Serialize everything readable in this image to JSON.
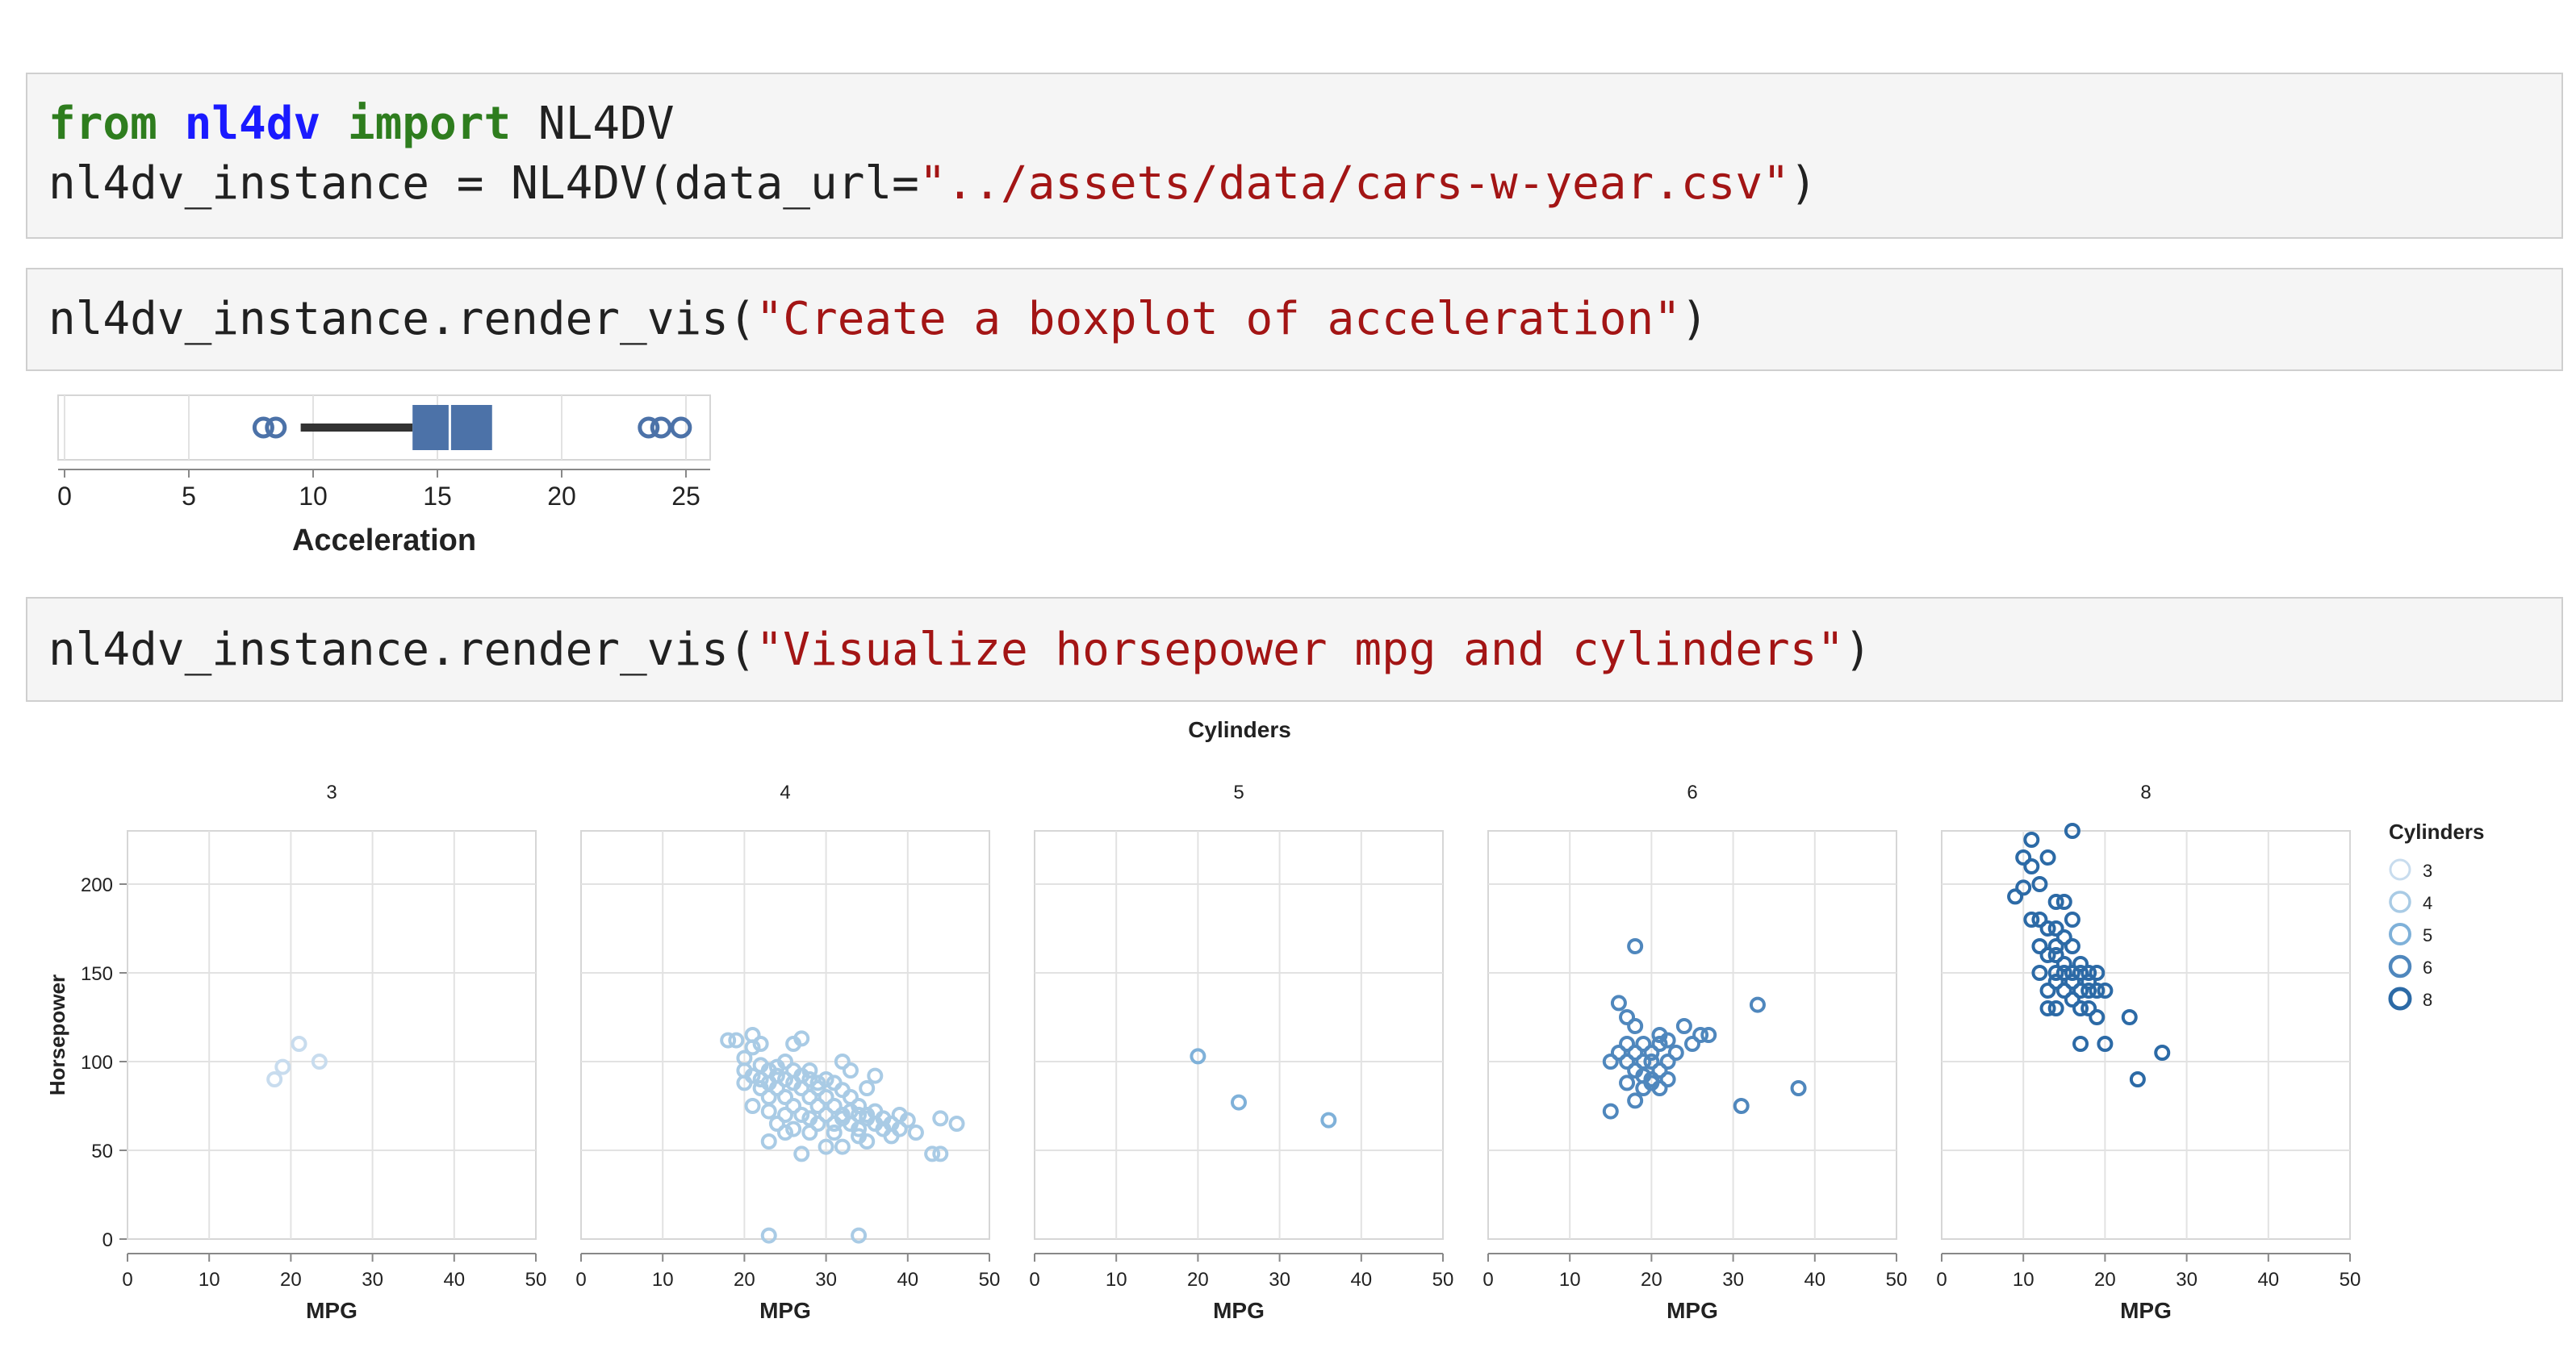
{
  "cells": {
    "c1": {
      "kw_from": "from",
      "module": "nl4dv",
      "kw_import": "import",
      "import_name": " NL4DV",
      "l2_pre": "nl4dv_instance = NL4DV(data_url=",
      "l2_str": "\"../assets/data/cars-w-year.csv\"",
      "l2_post": ")"
    },
    "c2": {
      "pre": "nl4dv_instance.render_vis(",
      "str": "\"Create a boxplot of acceleration\"",
      "post": ")"
    },
    "c3": {
      "pre": "nl4dv_instance.render_vis(",
      "str": "\"Visualize horsepower mpg and cylinders\"",
      "post": ")"
    }
  },
  "chart_data": [
    {
      "type": "boxplot",
      "xlabel": "Acceleration",
      "xlim": [
        0,
        25
      ],
      "ticks": [
        0,
        5,
        10,
        15,
        20,
        25
      ],
      "whisker_low": 9.5,
      "q1": 14,
      "median": 15.5,
      "q3": 17.2,
      "whisker_high": 17.2,
      "outliers": [
        8,
        8.5,
        23.5,
        24,
        24.8
      ]
    },
    {
      "type": "scatter",
      "title": "Cylinders",
      "xlabel": "MPG",
      "ylabel": "Horsepower",
      "xlim": [
        0,
        50
      ],
      "ylim": [
        0,
        230
      ],
      "xticks": [
        0,
        10,
        20,
        30,
        40,
        50
      ],
      "yticks": [
        0,
        50,
        100,
        150,
        200
      ],
      "legend": {
        "title": "Cylinders",
        "entries": [
          "3",
          "4",
          "5",
          "6",
          "8"
        ],
        "position": "right"
      },
      "facets": [
        {
          "label": "3",
          "color": "#c8dcee",
          "points": [
            [
              18,
              90
            ],
            [
              19,
              97
            ],
            [
              21,
              110
            ],
            [
              23.5,
              100
            ]
          ]
        },
        {
          "label": "4",
          "color": "#a9cbe5",
          "points": [
            [
              18,
              112
            ],
            [
              19,
              112
            ],
            [
              20,
              102
            ],
            [
              20,
              88
            ],
            [
              20,
              95
            ],
            [
              21,
              115
            ],
            [
              21,
              108
            ],
            [
              21,
              92
            ],
            [
              21,
              75
            ],
            [
              22,
              85
            ],
            [
              22,
              98
            ],
            [
              22,
              110
            ],
            [
              22,
              90
            ],
            [
              23,
              88
            ],
            [
              23,
              80
            ],
            [
              23,
              95
            ],
            [
              23,
              72
            ],
            [
              23,
              55
            ],
            [
              24,
              97
            ],
            [
              24,
              85
            ],
            [
              24,
              92
            ],
            [
              24,
              65
            ],
            [
              25,
              90
            ],
            [
              25,
              80
            ],
            [
              25,
              100
            ],
            [
              25,
              70
            ],
            [
              25,
              60
            ],
            [
              26,
              88
            ],
            [
              26,
              95
            ],
            [
              26,
              75
            ],
            [
              26,
              110
            ],
            [
              26,
              62
            ],
            [
              27,
              85
            ],
            [
              27,
              92
            ],
            [
              27,
              70
            ],
            [
              27,
              113
            ],
            [
              27,
              48
            ],
            [
              28,
              90
            ],
            [
              28,
              80
            ],
            [
              28,
              68
            ],
            [
              28,
              95
            ],
            [
              28,
              60
            ],
            [
              29,
              88
            ],
            [
              29,
              75
            ],
            [
              29,
              85
            ],
            [
              29,
              65
            ],
            [
              30,
              70
            ],
            [
              30,
              80
            ],
            [
              30,
              90
            ],
            [
              30,
              52
            ],
            [
              31,
              65
            ],
            [
              31,
              75
            ],
            [
              31,
              88
            ],
            [
              31,
              60
            ],
            [
              32,
              70
            ],
            [
              32,
              84
            ],
            [
              32,
              100
            ],
            [
              32,
              68
            ],
            [
              32,
              52
            ],
            [
              33,
              72
            ],
            [
              33,
              65
            ],
            [
              33,
              80
            ],
            [
              33,
              95
            ],
            [
              34,
              70
            ],
            [
              34,
              62
            ],
            [
              34,
              75
            ],
            [
              34,
              58
            ],
            [
              35,
              68
            ],
            [
              35,
              85
            ],
            [
              35,
              70
            ],
            [
              35,
              55
            ],
            [
              36,
              65
            ],
            [
              36,
              72
            ],
            [
              36,
              92
            ],
            [
              37,
              68
            ],
            [
              37,
              62
            ],
            [
              38,
              65
            ],
            [
              38,
              58
            ],
            [
              39,
              70
            ],
            [
              39,
              62
            ],
            [
              40,
              67
            ],
            [
              41,
              60
            ],
            [
              43,
              48
            ],
            [
              44,
              48
            ],
            [
              44,
              68
            ],
            [
              46,
              65
            ],
            [
              23,
              2
            ],
            [
              34,
              2
            ]
          ]
        },
        {
          "label": "5",
          "color": "#7fb1d9",
          "points": [
            [
              20,
              103
            ],
            [
              25,
              77
            ],
            [
              36,
              67
            ]
          ]
        },
        {
          "label": "6",
          "color": "#4f87bd",
          "points": [
            [
              15,
              72
            ],
            [
              15,
              100
            ],
            [
              16,
              105
            ],
            [
              16,
              133
            ],
            [
              17,
              88
            ],
            [
              17,
              100
            ],
            [
              17,
              110
            ],
            [
              17,
              125
            ],
            [
              18,
              78
            ],
            [
              18,
              95
            ],
            [
              18,
              105
            ],
            [
              18,
              165
            ],
            [
              18,
              120
            ],
            [
              19,
              85
            ],
            [
              19,
              100
            ],
            [
              19,
              110
            ],
            [
              19,
              92
            ],
            [
              20,
              90
            ],
            [
              20,
              100
            ],
            [
              20,
              105
            ],
            [
              20,
              88
            ],
            [
              21,
              95
            ],
            [
              21,
              110
            ],
            [
              21,
              85
            ],
            [
              21,
              115
            ],
            [
              22,
              90
            ],
            [
              22,
              100
            ],
            [
              22,
              112
            ],
            [
              23,
              105
            ],
            [
              24,
              120
            ],
            [
              25,
              110
            ],
            [
              26,
              115
            ],
            [
              27,
              115
            ],
            [
              31,
              75
            ],
            [
              33,
              132
            ],
            [
              38,
              85
            ]
          ]
        },
        {
          "label": "8",
          "color": "#2c6aa6",
          "points": [
            [
              9,
              193
            ],
            [
              10,
              215
            ],
            [
              10,
              198
            ],
            [
              11,
              210
            ],
            [
              11,
              180
            ],
            [
              11,
              225
            ],
            [
              12,
              200
            ],
            [
              12,
              180
            ],
            [
              12,
              165
            ],
            [
              12,
              150
            ],
            [
              13,
              215
            ],
            [
              13,
              175
            ],
            [
              13,
              160
            ],
            [
              13,
              140
            ],
            [
              13,
              130
            ],
            [
              14,
              190
            ],
            [
              14,
              175
            ],
            [
              14,
              160
            ],
            [
              14,
              150
            ],
            [
              14,
              145
            ],
            [
              14,
              130
            ],
            [
              14,
              165
            ],
            [
              15,
              190
            ],
            [
              15,
              170
            ],
            [
              15,
              150
            ],
            [
              15,
              140
            ],
            [
              15,
              155
            ],
            [
              16,
              230
            ],
            [
              16,
              180
            ],
            [
              16,
              165
            ],
            [
              16,
              150
            ],
            [
              16,
              145
            ],
            [
              16,
              135
            ],
            [
              17,
              150
            ],
            [
              17,
              140
            ],
            [
              17,
              130
            ],
            [
              17,
              110
            ],
            [
              17,
              155
            ],
            [
              18,
              150
            ],
            [
              18,
              145
            ],
            [
              18,
              140
            ],
            [
              18,
              130
            ],
            [
              19,
              150
            ],
            [
              19,
              140
            ],
            [
              19,
              125
            ],
            [
              20,
              140
            ],
            [
              20,
              110
            ],
            [
              23,
              125
            ],
            [
              24,
              90
            ],
            [
              27,
              105
            ]
          ]
        }
      ]
    }
  ]
}
